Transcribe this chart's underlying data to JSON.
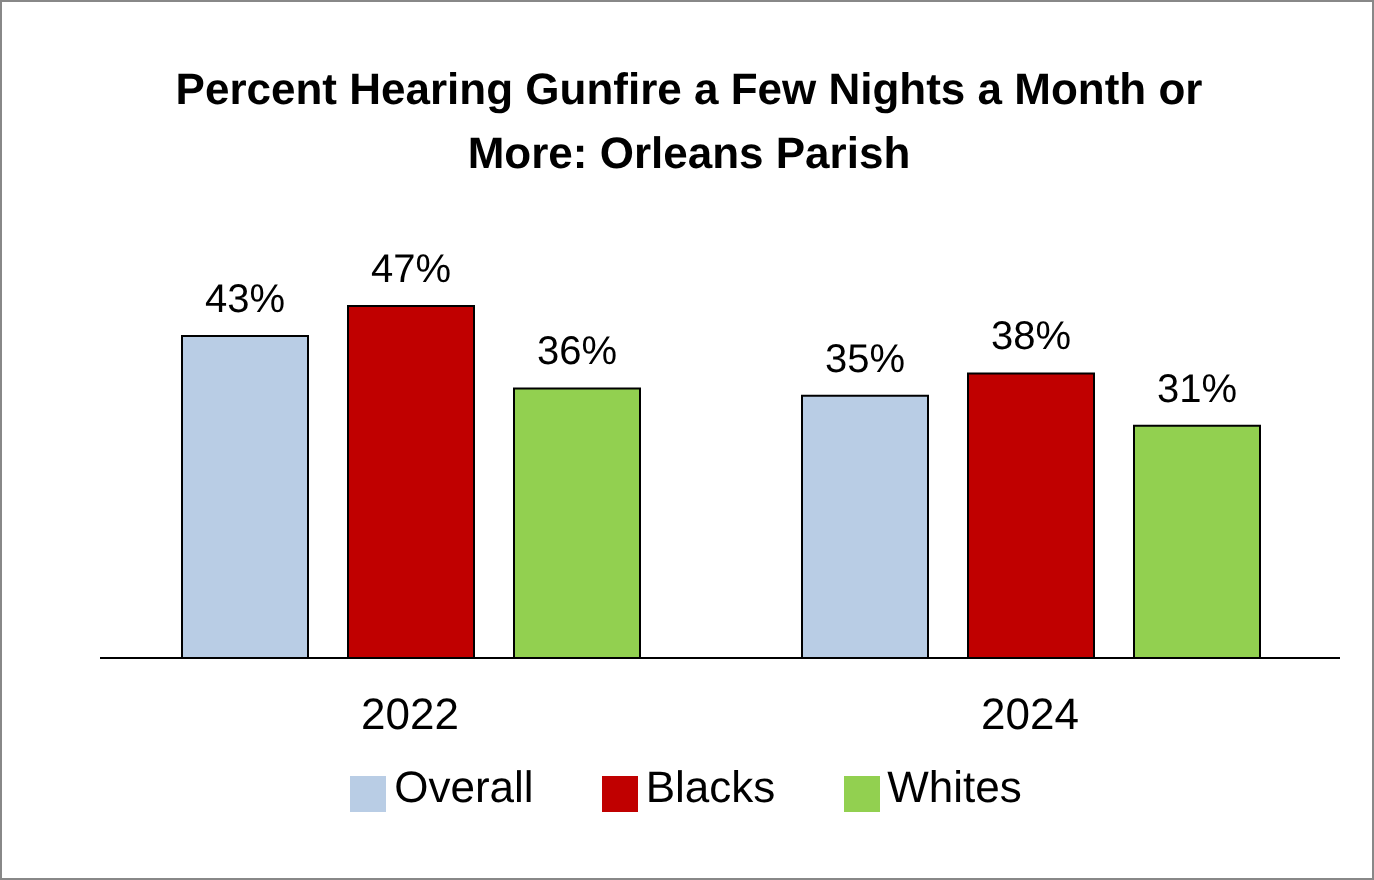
{
  "chart_data": {
    "type": "bar",
    "title": "Percent Hearing Gunfire a Few Nights a Month or More: Orleans Parish",
    "categories": [
      "2022",
      "2024"
    ],
    "series": [
      {
        "name": "Overall",
        "color": "#b9cde5",
        "values": [
          43,
          35
        ],
        "value_labels": [
          "43%",
          "35%"
        ]
      },
      {
        "name": "Blacks",
        "color": "#c00000",
        "values": [
          47,
          38
        ],
        "value_labels": [
          "47%",
          "38%"
        ]
      },
      {
        "name": "Whites",
        "color": "#92d050",
        "values": [
          36,
          31
        ],
        "value_labels": [
          "36%",
          "31%"
        ]
      }
    ],
    "legend": "bottom",
    "grid": false
  }
}
